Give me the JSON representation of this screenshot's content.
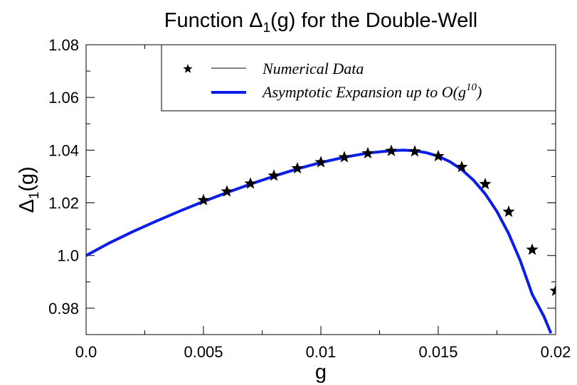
{
  "chart_data": {
    "type": "line",
    "title": {
      "prefix": "Function ",
      "symbol": "Δ",
      "subscript": "1",
      "suffix": "(g) for the Double-Well"
    },
    "xlabel": "g",
    "ylabel": {
      "symbol": "Δ",
      "subscript": "1",
      "suffix": "(g)"
    },
    "xlim": [
      0,
      0.02
    ],
    "ylim": [
      0.97,
      1.08
    ],
    "x_ticks": [
      {
        "value": 0,
        "label": "0.0"
      },
      {
        "value": 0.005,
        "label": "0.005"
      },
      {
        "value": 0.01,
        "label": "0.01"
      },
      {
        "value": 0.015,
        "label": "0.015"
      },
      {
        "value": 0.02,
        "label": "0.02"
      }
    ],
    "y_ticks": [
      {
        "value": 0.98,
        "label": "0.98"
      },
      {
        "value": 1.0,
        "label": "1.0"
      },
      {
        "value": 1.02,
        "label": "1.02"
      },
      {
        "value": 1.04,
        "label": "1.04"
      },
      {
        "value": 1.06,
        "label": "1.06"
      },
      {
        "value": 1.08,
        "label": "1.08"
      }
    ],
    "grid": false,
    "legend_position": "top-right",
    "series": [
      {
        "name": "Numerical Data",
        "kind": "scatter",
        "marker": "star",
        "color": "#000000",
        "x": [
          0.005,
          0.006,
          0.007,
          0.008,
          0.009,
          0.01,
          0.011,
          0.012,
          0.013,
          0.014,
          0.015,
          0.016,
          0.017,
          0.018,
          0.019,
          0.02
        ],
        "y": [
          1.021,
          1.0243,
          1.0273,
          1.0303,
          1.0331,
          1.0354,
          1.0373,
          1.0388,
          1.0397,
          1.0395,
          1.0377,
          1.0336,
          1.0271,
          1.0166,
          1.0022,
          0.9866
        ]
      },
      {
        "name_prefix": "Asymptotic Expansion up to O(g",
        "name_sup": "10",
        "name_suffix": ")",
        "kind": "line",
        "color": "#0a1ee6",
        "x": [
          0.0,
          0.001,
          0.002,
          0.003,
          0.004,
          0.005,
          0.006,
          0.007,
          0.008,
          0.009,
          0.01,
          0.011,
          0.012,
          0.013,
          0.0135,
          0.014,
          0.0145,
          0.015,
          0.0155,
          0.016,
          0.0165,
          0.017,
          0.0175,
          0.018,
          0.0185,
          0.019,
          0.0195,
          0.0198
        ],
        "y": [
          1.0,
          1.0048,
          1.0091,
          1.0131,
          1.0169,
          1.0205,
          1.0239,
          1.0271,
          1.0301,
          1.0329,
          1.0353,
          1.0373,
          1.0389,
          1.0398,
          1.04,
          1.0398,
          1.039,
          1.0377,
          1.0356,
          1.0326,
          1.0286,
          1.0234,
          1.0167,
          1.0083,
          0.9979,
          0.9853,
          0.9769,
          0.9705
        ]
      }
    ]
  }
}
